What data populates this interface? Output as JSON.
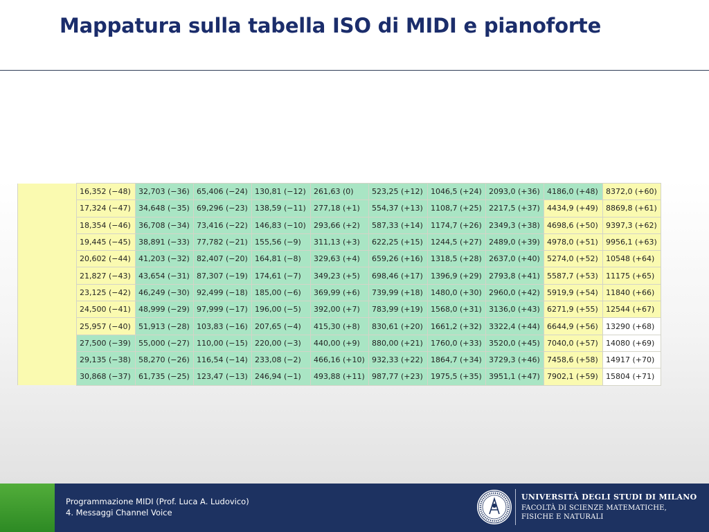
{
  "slide": {
    "title": "Mappatura sulla tabella ISO di MIDI e pianoforte"
  },
  "colors": {
    "yellow": "#fafab0",
    "green": "#a9e5c4",
    "white": "#ffffff",
    "title": "#1b2d6b",
    "footer_bg": "#1d3261",
    "footer_accent": "#3f9c2f"
  },
  "table": {
    "rows": [
      [
        {
          "t": "",
          "c": "y"
        },
        {
          "t": "16,352 (−48)",
          "c": "y"
        },
        {
          "t": "32,703 (−36)",
          "c": "g"
        },
        {
          "t": "65,406 (−24)",
          "c": "g"
        },
        {
          "t": "130,81 (−12)",
          "c": "g"
        },
        {
          "t": "261,63 (0)",
          "c": "g"
        },
        {
          "t": "523,25 (+12)",
          "c": "g"
        },
        {
          "t": "1046,5 (+24)",
          "c": "g"
        },
        {
          "t": "2093,0 (+36)",
          "c": "g"
        },
        {
          "t": "4186,0 (+48)",
          "c": "g"
        },
        {
          "t": "8372,0 (+60)",
          "c": "y"
        }
      ],
      [
        {
          "t": "",
          "c": "y"
        },
        {
          "t": "17,324 (−47)",
          "c": "y"
        },
        {
          "t": "34,648 (−35)",
          "c": "g"
        },
        {
          "t": "69,296 (−23)",
          "c": "g"
        },
        {
          "t": "138,59 (−11)",
          "c": "g"
        },
        {
          "t": "277,18 (+1)",
          "c": "g"
        },
        {
          "t": "554,37 (+13)",
          "c": "g"
        },
        {
          "t": "1108,7 (+25)",
          "c": "g"
        },
        {
          "t": "2217,5 (+37)",
          "c": "g"
        },
        {
          "t": "4434,9 (+49)",
          "c": "y"
        },
        {
          "t": "8869,8 (+61)",
          "c": "y"
        }
      ],
      [
        {
          "t": "",
          "c": "y"
        },
        {
          "t": "18,354 (−46)",
          "c": "y"
        },
        {
          "t": "36,708 (−34)",
          "c": "g"
        },
        {
          "t": "73,416 (−22)",
          "c": "g"
        },
        {
          "t": "146,83 (−10)",
          "c": "g"
        },
        {
          "t": "293,66 (+2)",
          "c": "g"
        },
        {
          "t": "587,33 (+14)",
          "c": "g"
        },
        {
          "t": "1174,7 (+26)",
          "c": "g"
        },
        {
          "t": "2349,3 (+38)",
          "c": "g"
        },
        {
          "t": "4698,6 (+50)",
          "c": "y"
        },
        {
          "t": "9397,3 (+62)",
          "c": "y"
        }
      ],
      [
        {
          "t": "",
          "c": "y"
        },
        {
          "t": "19,445 (−45)",
          "c": "y"
        },
        {
          "t": "38,891 (−33)",
          "c": "g"
        },
        {
          "t": "77,782 (−21)",
          "c": "g"
        },
        {
          "t": "155,56 (−9)",
          "c": "g"
        },
        {
          "t": "311,13 (+3)",
          "c": "g"
        },
        {
          "t": "622,25 (+15)",
          "c": "g"
        },
        {
          "t": "1244,5 (+27)",
          "c": "g"
        },
        {
          "t": "2489,0 (+39)",
          "c": "g"
        },
        {
          "t": "4978,0 (+51)",
          "c": "y"
        },
        {
          "t": "9956,1 (+63)",
          "c": "y"
        }
      ],
      [
        {
          "t": "",
          "c": "y"
        },
        {
          "t": "20,602 (−44)",
          "c": "y"
        },
        {
          "t": "41,203 (−32)",
          "c": "g"
        },
        {
          "t": "82,407 (−20)",
          "c": "g"
        },
        {
          "t": "164,81 (−8)",
          "c": "g"
        },
        {
          "t": "329,63 (+4)",
          "c": "g"
        },
        {
          "t": "659,26 (+16)",
          "c": "g"
        },
        {
          "t": "1318,5 (+28)",
          "c": "g"
        },
        {
          "t": "2637,0 (+40)",
          "c": "g"
        },
        {
          "t": "5274,0 (+52)",
          "c": "y"
        },
        {
          "t": "10548 (+64)",
          "c": "y"
        }
      ],
      [
        {
          "t": "",
          "c": "y"
        },
        {
          "t": "21,827 (−43)",
          "c": "y"
        },
        {
          "t": "43,654 (−31)",
          "c": "g"
        },
        {
          "t": "87,307 (−19)",
          "c": "g"
        },
        {
          "t": "174,61 (−7)",
          "c": "g"
        },
        {
          "t": "349,23 (+5)",
          "c": "g"
        },
        {
          "t": "698,46 (+17)",
          "c": "g"
        },
        {
          "t": "1396,9 (+29)",
          "c": "g"
        },
        {
          "t": "2793,8 (+41)",
          "c": "g"
        },
        {
          "t": "5587,7 (+53)",
          "c": "y"
        },
        {
          "t": "11175 (+65)",
          "c": "y"
        }
      ],
      [
        {
          "t": "",
          "c": "y"
        },
        {
          "t": "23,125 (−42)",
          "c": "y"
        },
        {
          "t": "46,249 (−30)",
          "c": "g"
        },
        {
          "t": "92,499 (−18)",
          "c": "g"
        },
        {
          "t": "185,00 (−6)",
          "c": "g"
        },
        {
          "t": "369,99 (+6)",
          "c": "g"
        },
        {
          "t": "739,99 (+18)",
          "c": "g"
        },
        {
          "t": "1480,0 (+30)",
          "c": "g"
        },
        {
          "t": "2960,0 (+42)",
          "c": "g"
        },
        {
          "t": "5919,9 (+54)",
          "c": "y"
        },
        {
          "t": "11840 (+66)",
          "c": "y"
        }
      ],
      [
        {
          "t": "",
          "c": "y"
        },
        {
          "t": "24,500 (−41)",
          "c": "y"
        },
        {
          "t": "48,999 (−29)",
          "c": "g"
        },
        {
          "t": "97,999 (−17)",
          "c": "g"
        },
        {
          "t": "196,00 (−5)",
          "c": "g"
        },
        {
          "t": "392,00 (+7)",
          "c": "g"
        },
        {
          "t": "783,99 (+19)",
          "c": "g"
        },
        {
          "t": "1568,0 (+31)",
          "c": "g"
        },
        {
          "t": "3136,0 (+43)",
          "c": "g"
        },
        {
          "t": "6271,9 (+55)",
          "c": "y"
        },
        {
          "t": "12544 (+67)",
          "c": "y"
        }
      ],
      [
        {
          "t": "",
          "c": "y"
        },
        {
          "t": "25,957 (−40)",
          "c": "y"
        },
        {
          "t": "51,913 (−28)",
          "c": "g"
        },
        {
          "t": "103,83 (−16)",
          "c": "g"
        },
        {
          "t": "207,65 (−4)",
          "c": "g"
        },
        {
          "t": "415,30 (+8)",
          "c": "g"
        },
        {
          "t": "830,61 (+20)",
          "c": "g"
        },
        {
          "t": "1661,2 (+32)",
          "c": "g"
        },
        {
          "t": "3322,4 (+44)",
          "c": "g"
        },
        {
          "t": "6644,9 (+56)",
          "c": "y"
        },
        {
          "t": "13290 (+68)",
          "c": "w"
        }
      ],
      [
        {
          "t": "",
          "c": "y"
        },
        {
          "t": "27,500 (−39)",
          "c": "g"
        },
        {
          "t": "55,000 (−27)",
          "c": "g"
        },
        {
          "t": "110,00 (−15)",
          "c": "g"
        },
        {
          "t": "220,00 (−3)",
          "c": "g"
        },
        {
          "t": "440,00 (+9)",
          "c": "g"
        },
        {
          "t": "880,00 (+21)",
          "c": "g"
        },
        {
          "t": "1760,0 (+33)",
          "c": "g"
        },
        {
          "t": "3520,0 (+45)",
          "c": "g"
        },
        {
          "t": "7040,0 (+57)",
          "c": "y"
        },
        {
          "t": "14080 (+69)",
          "c": "w"
        }
      ],
      [
        {
          "t": "",
          "c": "y"
        },
        {
          "t": "29,135 (−38)",
          "c": "g"
        },
        {
          "t": "58,270 (−26)",
          "c": "g"
        },
        {
          "t": "116,54 (−14)",
          "c": "g"
        },
        {
          "t": "233,08 (−2)",
          "c": "g"
        },
        {
          "t": "466,16 (+10)",
          "c": "g"
        },
        {
          "t": "932,33 (+22)",
          "c": "g"
        },
        {
          "t": "1864,7 (+34)",
          "c": "g"
        },
        {
          "t": "3729,3 (+46)",
          "c": "g"
        },
        {
          "t": "7458,6 (+58)",
          "c": "y"
        },
        {
          "t": "14917 (+70)",
          "c": "w"
        }
      ],
      [
        {
          "t": "",
          "c": "y"
        },
        {
          "t": "30,868 (−37)",
          "c": "g"
        },
        {
          "t": "61,735 (−25)",
          "c": "g"
        },
        {
          "t": "123,47 (−13)",
          "c": "g"
        },
        {
          "t": "246,94 (−1)",
          "c": "g"
        },
        {
          "t": "493,88 (+11)",
          "c": "g"
        },
        {
          "t": "987,77 (+23)",
          "c": "g"
        },
        {
          "t": "1975,5 (+35)",
          "c": "g"
        },
        {
          "t": "3951,1 (+47)",
          "c": "g"
        },
        {
          "t": "7902,1 (+59)",
          "c": "y"
        },
        {
          "t": "15804 (+71)",
          "c": "w"
        }
      ]
    ]
  },
  "footer": {
    "course": "Programmazione MIDI (Prof. Luca A. Ludovico)",
    "lesson": "4. Messaggi Channel Voice",
    "university": "UNIVERSITÀ DEGLI STUDI DI MILANO",
    "faculty_line1": "FACOLTÀ DI SCIENZE MATEMATICHE,",
    "faculty_line2": "FISICHE E NATURALI",
    "seal_icon": "university-seal-icon"
  }
}
